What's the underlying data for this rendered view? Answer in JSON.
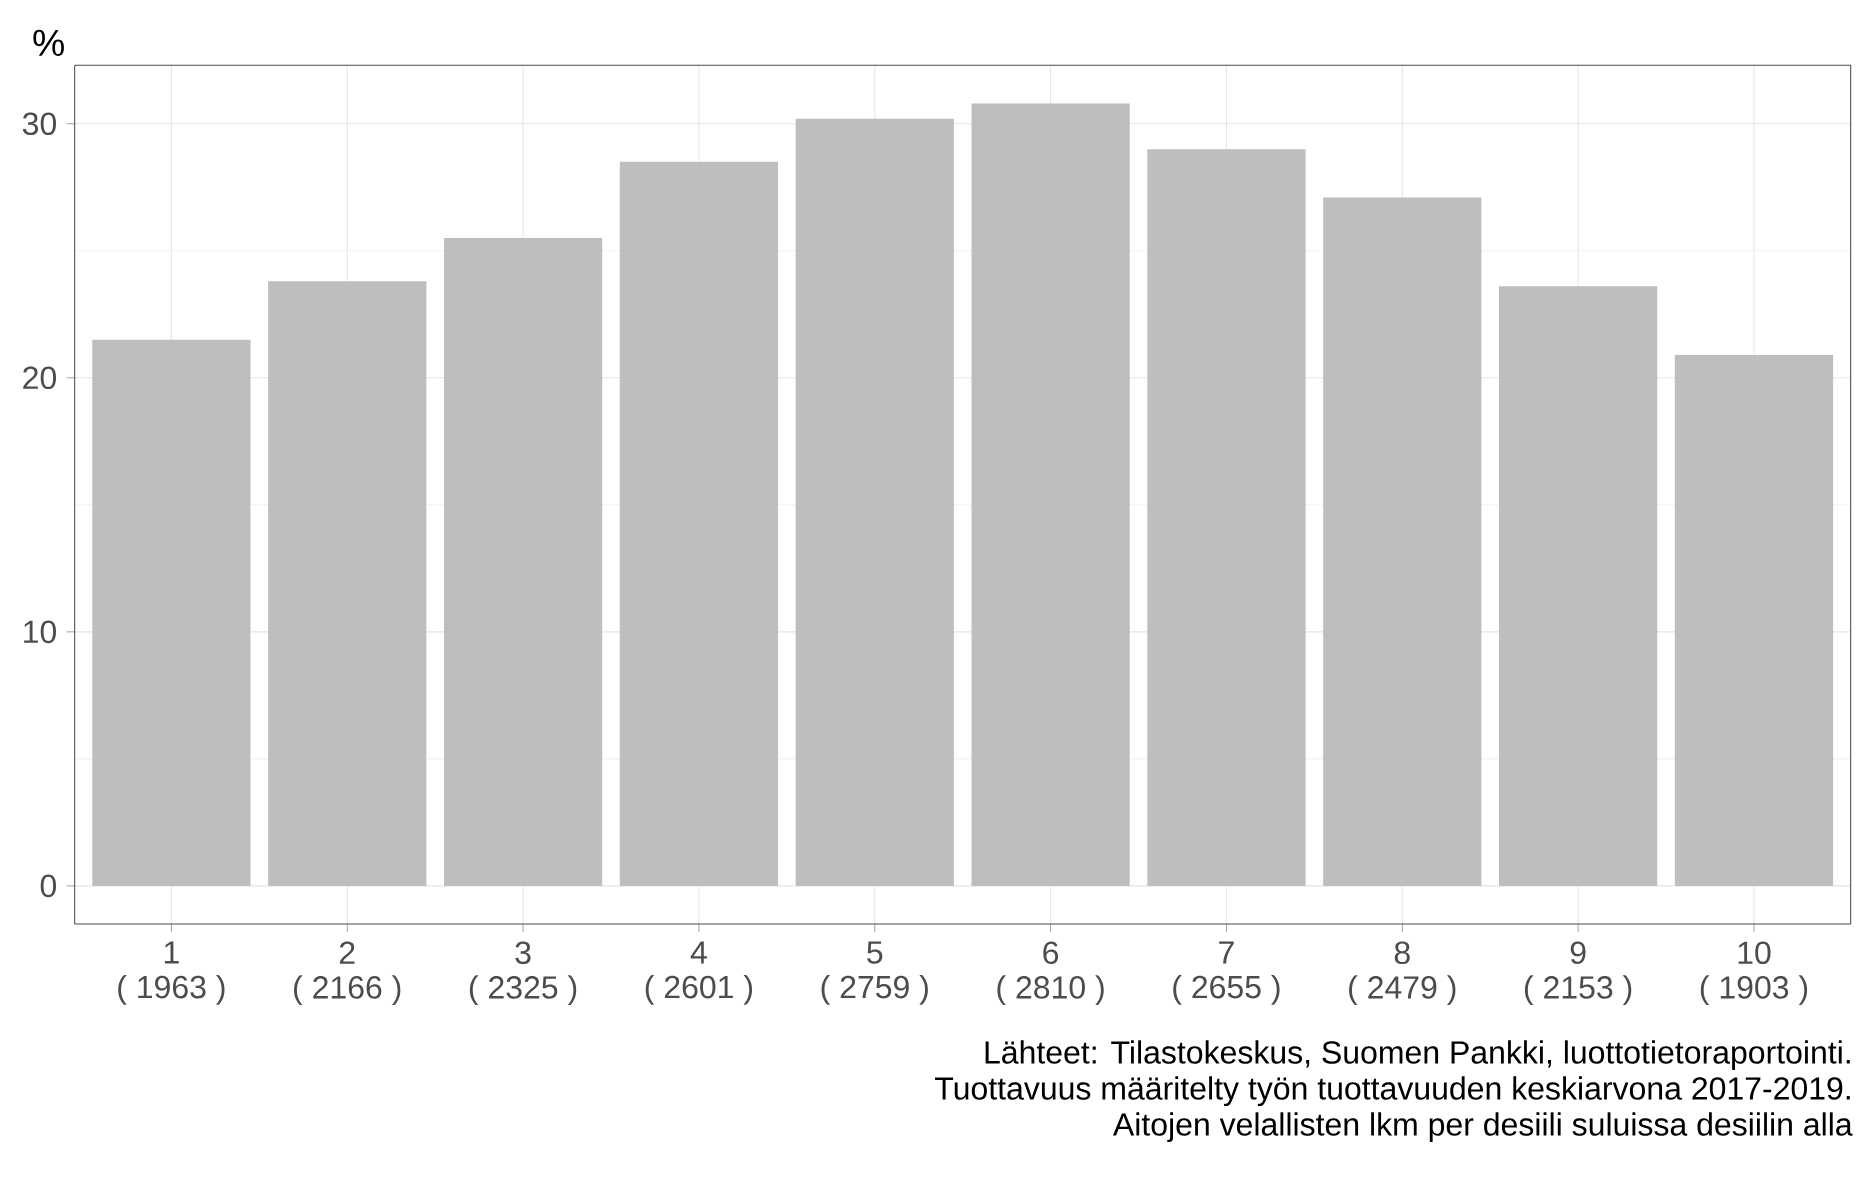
{
  "chart_data": {
    "type": "bar",
    "ylabel": "%",
    "categories": [
      "1\n( 1963 )",
      "2\n( 2166 )",
      "3\n( 2325 )",
      "4\n( 2601 )",
      "5\n( 2759 )",
      "6\n( 2810 )",
      "7\n( 2655 )",
      "8\n( 2479 )",
      "9\n( 2153 )",
      "10\n( 1903 )"
    ],
    "values": [
      21.5,
      23.8,
      25.5,
      28.5,
      30.2,
      30.8,
      29.0,
      27.1,
      23.6,
      20.9
    ],
    "color": "#bebebe",
    "ylim": [
      -1.5,
      32.3
    ],
    "yticks": [
      0,
      10,
      20,
      30
    ],
    "grid": true,
    "annotations": [
      "Lähteet: Tilastokeskus, Suomen Pankki, luottotietoraportointi.",
      "Tuottavuus määritelty työn tuottavuuden keskiarvona 2017-2019.",
      "Aitojen velallisten lkm per desiili suluissa desiilin alla"
    ]
  }
}
